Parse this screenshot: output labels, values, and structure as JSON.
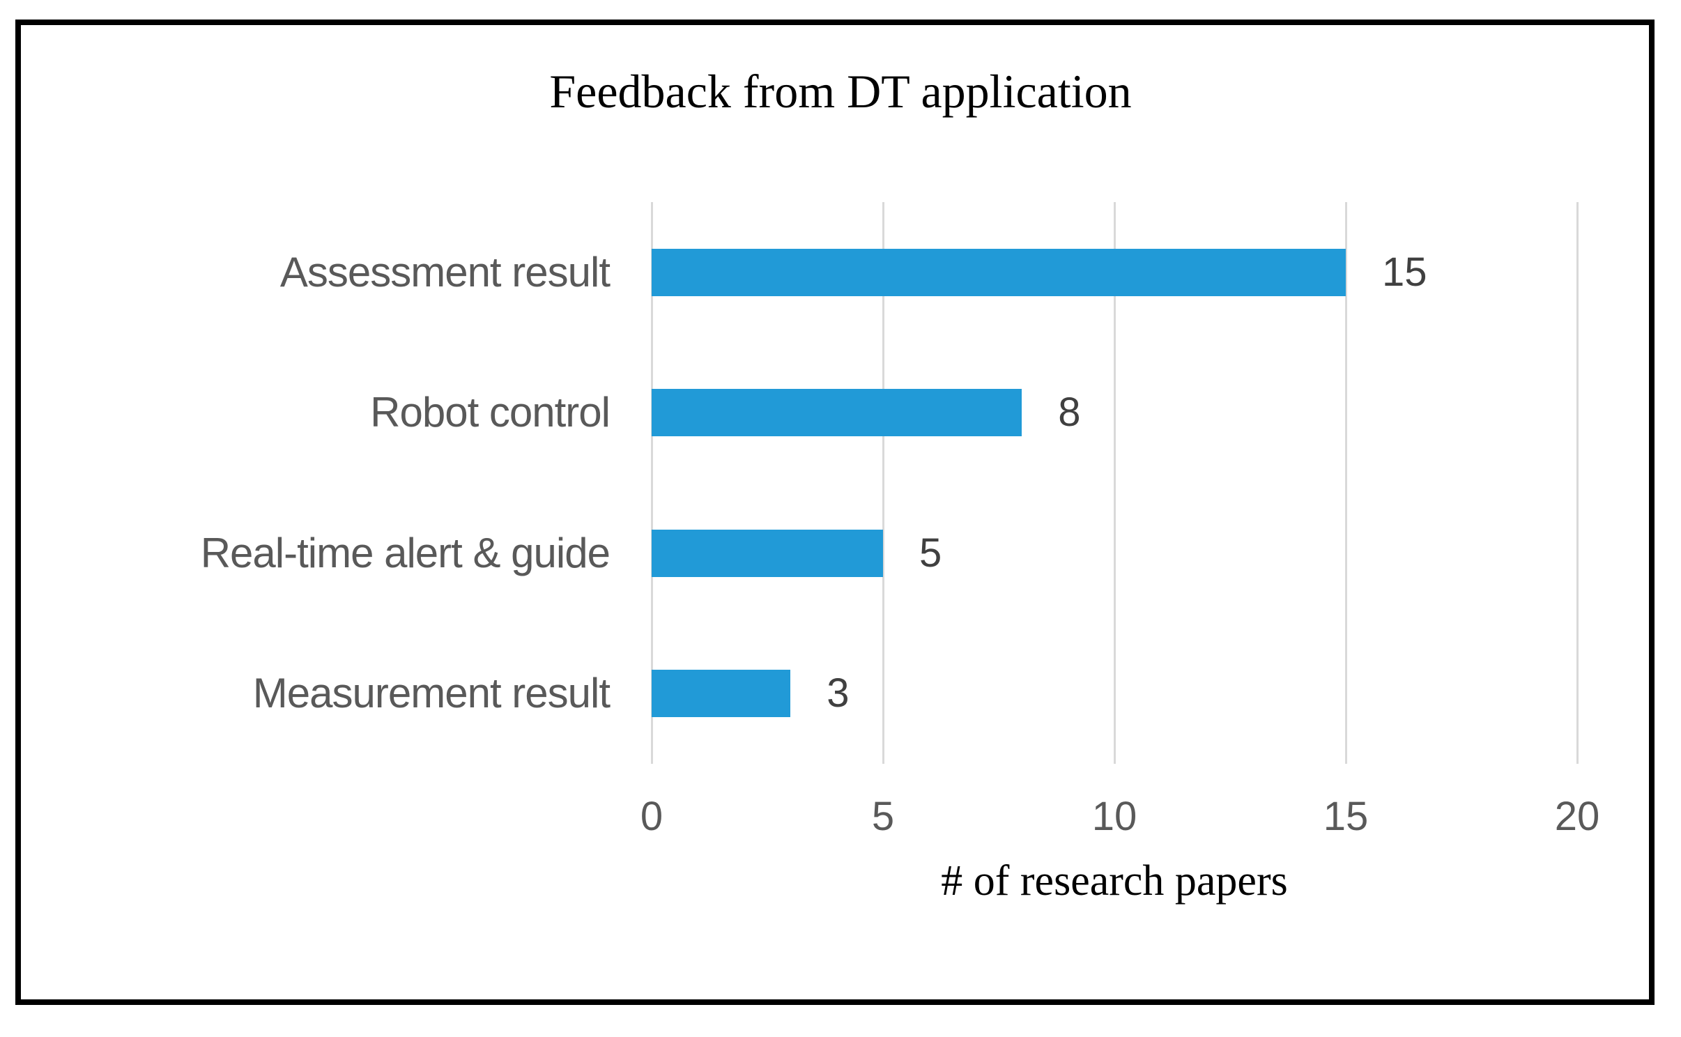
{
  "figure": {
    "border_color": "#000000",
    "background_color": "#ffffff"
  },
  "chart_data": {
    "type": "bar",
    "orientation": "horizontal",
    "title": "Feedback from DT application",
    "xlabel": "# of research papers",
    "ylabel": "",
    "categories": [
      "Assessment result",
      "Robot control",
      "Real-time alert & guide",
      "Measurement result"
    ],
    "values": [
      15,
      8,
      5,
      3
    ],
    "data_labels": [
      "15",
      "8",
      "5",
      "3"
    ],
    "xticks": [
      "0",
      "5",
      "10",
      "15",
      "20"
    ],
    "xtick_values": [
      0,
      5,
      10,
      15,
      20
    ],
    "xlim": [
      0,
      20
    ],
    "grid": "vertical-only",
    "legend": "none",
    "colors": {
      "bar": "#219AD7",
      "gridline": "#D9D9D9",
      "category_label": "#595959",
      "tick_label": "#595959",
      "value_label": "#404040",
      "title": "#000000",
      "axis_label": "#000000"
    }
  }
}
